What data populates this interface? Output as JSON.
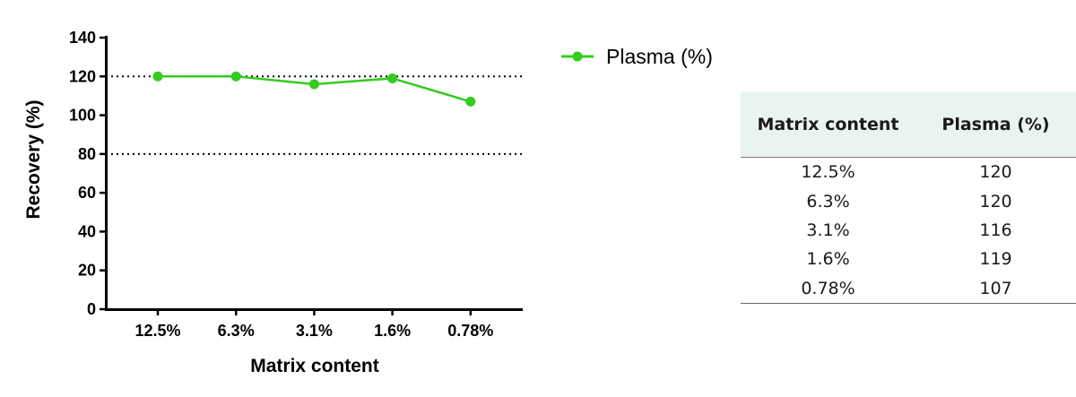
{
  "chart_data": {
    "type": "line",
    "xlabel": "Matrix content",
    "ylabel": "Recovery (%)",
    "categories": [
      "12.5%",
      "6.3%",
      "3.1%",
      "1.6%",
      "0.78%"
    ],
    "series": [
      {
        "name": "Plasma (%)",
        "values": [
          120,
          120,
          116,
          119,
          107
        ],
        "color": "#33cc1f"
      }
    ],
    "ylim": [
      0,
      140
    ],
    "yticks": [
      "0",
      "20",
      "40",
      "60",
      "80",
      "100",
      "120",
      "140"
    ],
    "reference_lines": [
      80,
      120
    ],
    "grid": false,
    "legend_position": "top-right"
  },
  "table": {
    "headers": [
      "Matrix content",
      "Plasma (%)"
    ],
    "rows": [
      [
        "12.5%",
        "120"
      ],
      [
        "6.3%",
        "120"
      ],
      [
        "3.1%",
        "116"
      ],
      [
        "1.6%",
        "119"
      ],
      [
        "0.78%",
        "107"
      ]
    ]
  }
}
